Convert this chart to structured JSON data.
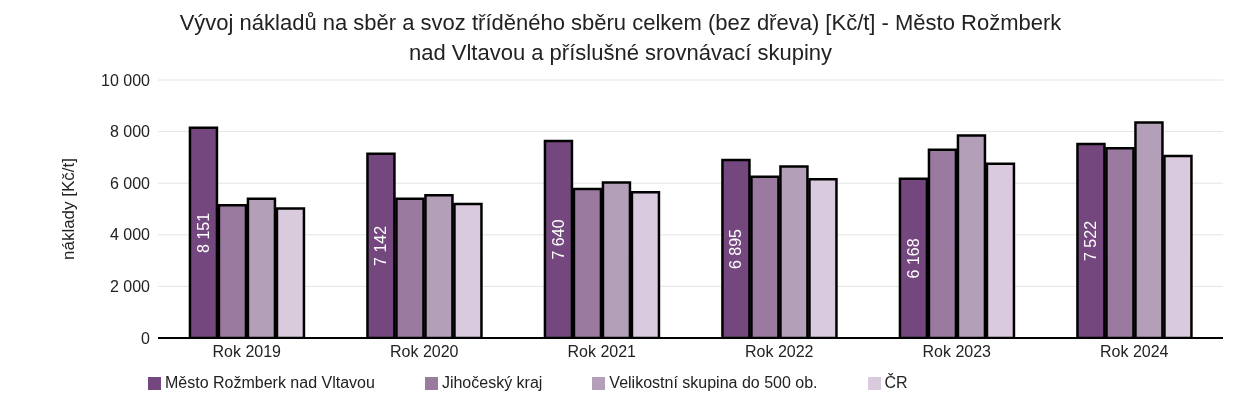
{
  "chart_data": {
    "type": "bar",
    "title": "Vývoj nákladů na sběr a svoz tříděného sběru celkem (bez dřeva) [Kč/t] - Město Rožmberk nad Vltavou a příslušné srovnávací skupiny",
    "ylabel": "náklady [Kč/t]",
    "categories": [
      "Rok 2019",
      "Rok 2020",
      "Rok 2021",
      "Rok 2022",
      "Rok 2023",
      "Rok 2024"
    ],
    "series": [
      {
        "name": "Město Rožmberk nad Vltavou",
        "color": "#74487e",
        "values": [
          8151,
          7142,
          7640,
          6895,
          6168,
          7522
        ],
        "value_labels": [
          "8 151",
          "7 142",
          "7 640",
          "6 895",
          "6 168",
          "7 522"
        ]
      },
      {
        "name": "Jihočeský kraj",
        "color": "#9b7aa0",
        "values": [
          5150,
          5400,
          5780,
          6250,
          7300,
          7350
        ]
      },
      {
        "name": "Velikostní skupina do 500 ob.",
        "color": "#b3a0b8",
        "values": [
          5400,
          5530,
          6030,
          6650,
          7850,
          8350
        ]
      },
      {
        "name": "ČR",
        "color": "#d9cadd",
        "values": [
          5020,
          5190,
          5650,
          6150,
          6750,
          7050
        ]
      }
    ],
    "ylim": [
      0,
      10000
    ],
    "yticks": [
      0,
      {
        "value": 2000,
        "label": "2 000"
      },
      {
        "value": 4000,
        "label": "4 000"
      },
      {
        "value": 6000,
        "label": "6 000"
      },
      {
        "value": 8000,
        "label": "8 000"
      },
      {
        "value": 10000,
        "label": "10 000"
      }
    ],
    "grid": "y",
    "legend": "bottom"
  }
}
